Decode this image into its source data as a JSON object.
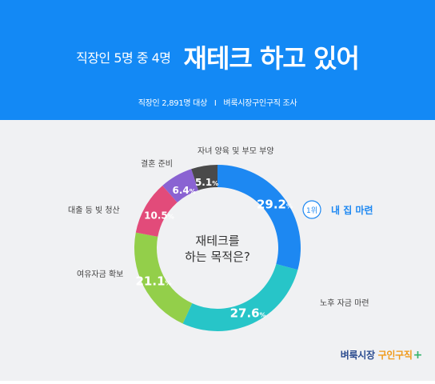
{
  "header": {
    "subtitle": "직장인 5명 중 4명",
    "title": "재테크 하고 있어",
    "survey_note_left": "직장인 2,891명 대상",
    "survey_note_sep": "I",
    "survey_note_right": "벼룩시장구인구직 조사"
  },
  "brand": {
    "part1": "벼룩시장",
    "part2": "구인구직",
    "plus": "+"
  },
  "chart_data": {
    "type": "pie",
    "title": "재테크를 하는 목적은?",
    "title_lines": [
      "재테크를",
      "하는 목적은?"
    ],
    "rank_badge": "1위",
    "slices": [
      {
        "label": "내 집 마련",
        "value": 29.2,
        "value_text": "29.2",
        "color": "#1d88f2"
      },
      {
        "label": "노후 자금 마련",
        "value": 27.6,
        "value_text": "27.6",
        "color": "#27c5c8"
      },
      {
        "label": "여유자금 확보",
        "value": 21.1,
        "value_text": "21.1",
        "color": "#93cf4a"
      },
      {
        "label": "대출 등 빚 청산",
        "value": 10.5,
        "value_text": "10.5",
        "color": "#e24b7a"
      },
      {
        "label": "결혼 준비",
        "value": 6.4,
        "value_text": "6.4",
        "color": "#8a63d2"
      },
      {
        "label": "자녀 양육 및 부모 부양",
        "value": 5.1,
        "value_text": "5.1",
        "color": "#4a4a4a"
      }
    ],
    "unit": "%",
    "legend": "none"
  }
}
